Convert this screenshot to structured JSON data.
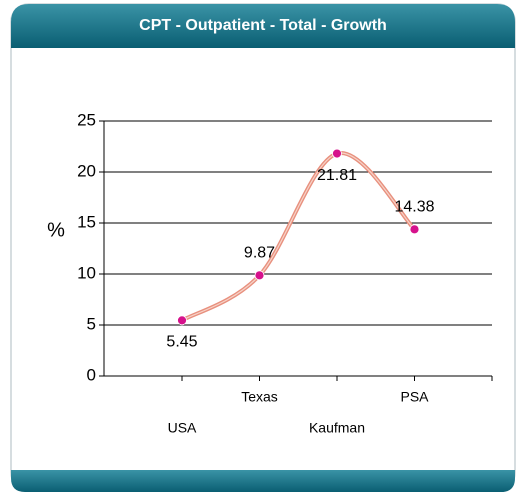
{
  "chart_data": {
    "type": "line",
    "title": "CPT - Outpatient - Total - Growth",
    "y_label": "%",
    "categories": [
      "USA",
      "Texas",
      "Kaufman",
      "PSA"
    ],
    "series": [
      {
        "name": "Growth",
        "color": "#e8907e",
        "marker_color": "#d6128c",
        "values": [
          5.45,
          9.87,
          21.81,
          14.38
        ]
      }
    ],
    "ylim": [
      0,
      25
    ],
    "yticks": [
      0,
      5,
      10,
      15,
      20,
      25
    ],
    "grid": true
  }
}
